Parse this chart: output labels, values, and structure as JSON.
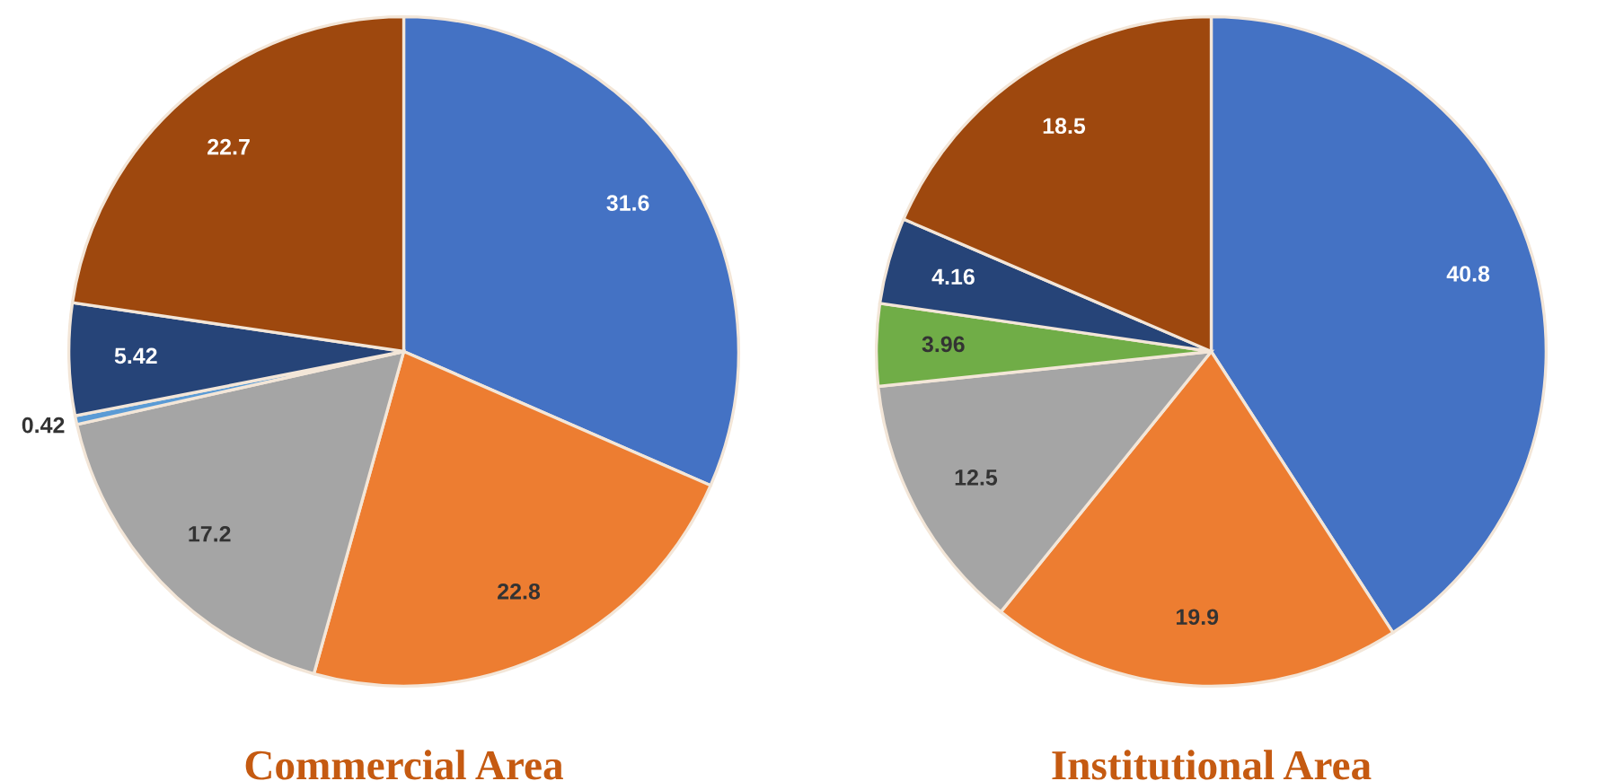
{
  "chart_data": [
    {
      "type": "pie",
      "title": "Commercial Area",
      "categories": [
        null,
        null,
        null,
        null,
        null,
        null
      ],
      "values": [
        31.6,
        22.8,
        17.2,
        0.42,
        5.42,
        22.7
      ],
      "colors": [
        "#4472c4",
        "#ed7d31",
        "#a5a5a5",
        "#5b9bd5",
        "#264478",
        "#9e480e"
      ],
      "data_labels": true
    },
    {
      "type": "pie",
      "title": "Institutional Area",
      "categories": [
        null,
        null,
        null,
        null,
        null,
        null
      ],
      "values": [
        40.8,
        19.9,
        12.5,
        3.96,
        4.16,
        18.5
      ],
      "colors": [
        "#4472c4",
        "#ed7d31",
        "#a5a5a5",
        "#70ad47",
        "#264478",
        "#9e480e"
      ],
      "data_labels": true
    }
  ]
}
